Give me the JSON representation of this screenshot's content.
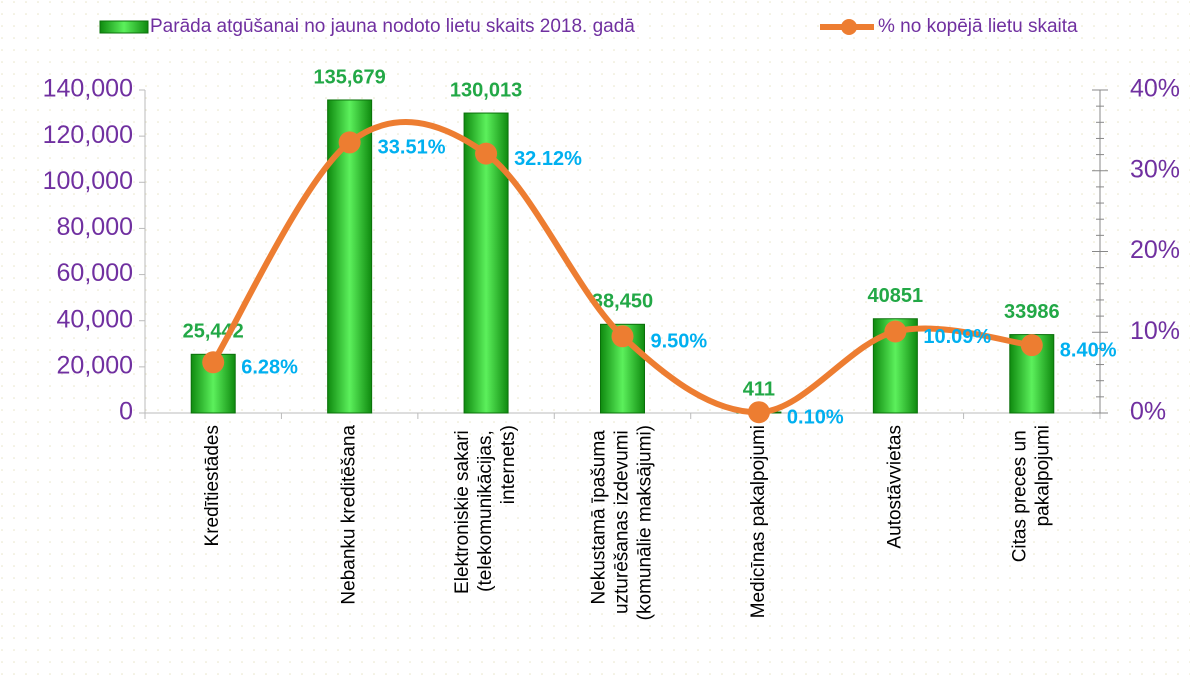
{
  "chart_data": {
    "type": "bar-line",
    "categories": [
      "Kredītiestādes",
      "Nebanku kreditēšana",
      "Elektroniskie sakari (telekomunikācijas, internets)",
      "Nekustamā īpašuma uzturēšanas izdevumi (komunālie maksājumi)",
      "Medicīnas pakalpojumi",
      "Autostāvvietas",
      "Citas preces un pakalpojumi"
    ],
    "series": [
      {
        "name": "Parāda atgūšanai no jauna nodoto lietu skaits 2018. gadā",
        "type": "bar",
        "color": "#22c022",
        "values": [
          25442,
          135679,
          130013,
          38450,
          411,
          40851,
          33986
        ],
        "value_labels": [
          "25,442",
          "135,679",
          "130,013",
          "38,450",
          "411",
          "40851",
          "33986"
        ]
      },
      {
        "name": "% no kopējā lietu skaita",
        "type": "line",
        "axis": "y2",
        "color": "#ed7d31",
        "values": [
          6.28,
          33.51,
          32.12,
          9.5,
          0.1,
          10.09,
          8.4
        ],
        "value_labels": [
          "6.28%",
          "33.51%",
          "32.12%",
          "9.50%",
          "0.10%",
          "10.09%",
          "8.40%"
        ]
      }
    ],
    "ylim": [
      0,
      140000
    ],
    "yticks": [
      0,
      {
        "value": 20000,
        "label": "20,000"
      },
      {
        "value": 40000,
        "label": "40,000"
      },
      {
        "value": 60000,
        "label": "60,000"
      },
      {
        "value": 80000,
        "label": "80,000"
      },
      {
        "value": 100000,
        "label": "100,000"
      },
      {
        "value": 120000,
        "label": "120,000"
      },
      {
        "value": 140000,
        "label": "140,000"
      }
    ],
    "y2lim": [
      0,
      40
    ],
    "y2ticks": [
      {
        "value": 0,
        "label": "0%"
      },
      {
        "value": 10,
        "label": "10%"
      },
      {
        "value": 20,
        "label": "20%"
      },
      {
        "value": 30,
        "label": "30%"
      },
      {
        "value": 40,
        "label": "40%"
      }
    ],
    "legend": "top"
  }
}
